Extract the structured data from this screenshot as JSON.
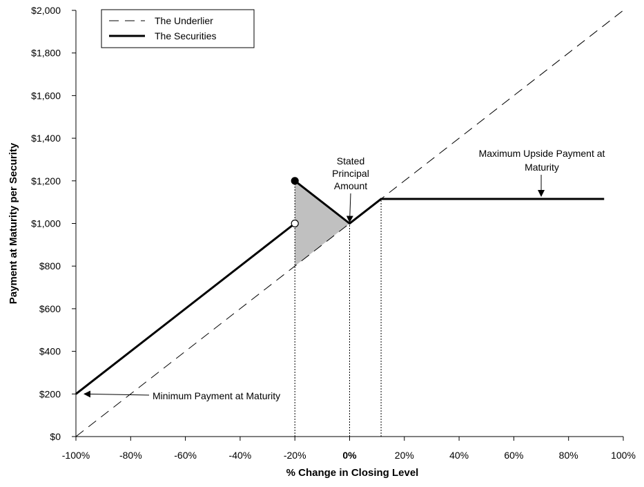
{
  "chart_data": {
    "type": "line",
    "xlabel": "% Change in Closing Level",
    "ylabel": "Payment at Maturity per Security",
    "xlim": [
      -100,
      100
    ],
    "ylim": [
      0,
      2000
    ],
    "x_ticks": [
      -100,
      -80,
      -60,
      -40,
      -20,
      0,
      20,
      40,
      60,
      80,
      100
    ],
    "x_tick_labels": [
      "-100%",
      "-80%",
      "-60%",
      "-40%",
      "-20%",
      "0%",
      "20%",
      "40%",
      "60%",
      "80%",
      "100%"
    ],
    "y_ticks": [
      0,
      200,
      400,
      600,
      800,
      1000,
      1200,
      1400,
      1600,
      1800,
      2000
    ],
    "y_tick_labels": [
      "$0",
      "$200",
      "$400",
      "$600",
      "$800",
      "$1,000",
      "$1,200",
      "$1,400",
      "$1,600",
      "$1,800",
      "$2,000"
    ],
    "grid": false,
    "legend": {
      "position": "top-left",
      "entries": [
        "The Underlier",
        "The Securities"
      ]
    },
    "series": [
      {
        "name": "The Underlier",
        "style": "dashed",
        "x": [
          -100,
          100
        ],
        "y": [
          0,
          2000
        ]
      },
      {
        "name": "The Securities",
        "style": "solid-thick",
        "segments": [
          {
            "x": [
              -100,
              -20
            ],
            "y": [
              200,
              1000
            ]
          },
          {
            "x": [
              -20,
              0,
              11.5,
              93
            ],
            "y": [
              1200,
              1000,
              1115,
              1115
            ]
          }
        ]
      }
    ],
    "markers": [
      {
        "x": -20,
        "y": 1200,
        "fill": "filled"
      },
      {
        "x": -20,
        "y": 1000,
        "fill": "open"
      }
    ],
    "shaded_region": {
      "x": [
        -20,
        -20,
        0
      ],
      "y": [
        800,
        1200,
        1000
      ],
      "color": "#c0c0c0"
    },
    "reference_lines": [
      {
        "x": -20,
        "y": [
          0,
          1200
        ]
      },
      {
        "x": 0,
        "y": [
          0,
          1000
        ]
      },
      {
        "x": 11.5,
        "y": [
          0,
          1115
        ]
      }
    ],
    "annotations": [
      {
        "lines": [
          "Stated",
          "Principal",
          "Amount"
        ],
        "arrow_to": [
          0,
          1000
        ]
      },
      {
        "lines": [
          "Maximum Upside Payment at",
          "Maturity"
        ],
        "arrow_to": [
          70,
          1115
        ]
      },
      {
        "lines": [
          "Minimum Payment at Maturity"
        ],
        "arrow_to": [
          -100,
          200
        ]
      }
    ]
  }
}
